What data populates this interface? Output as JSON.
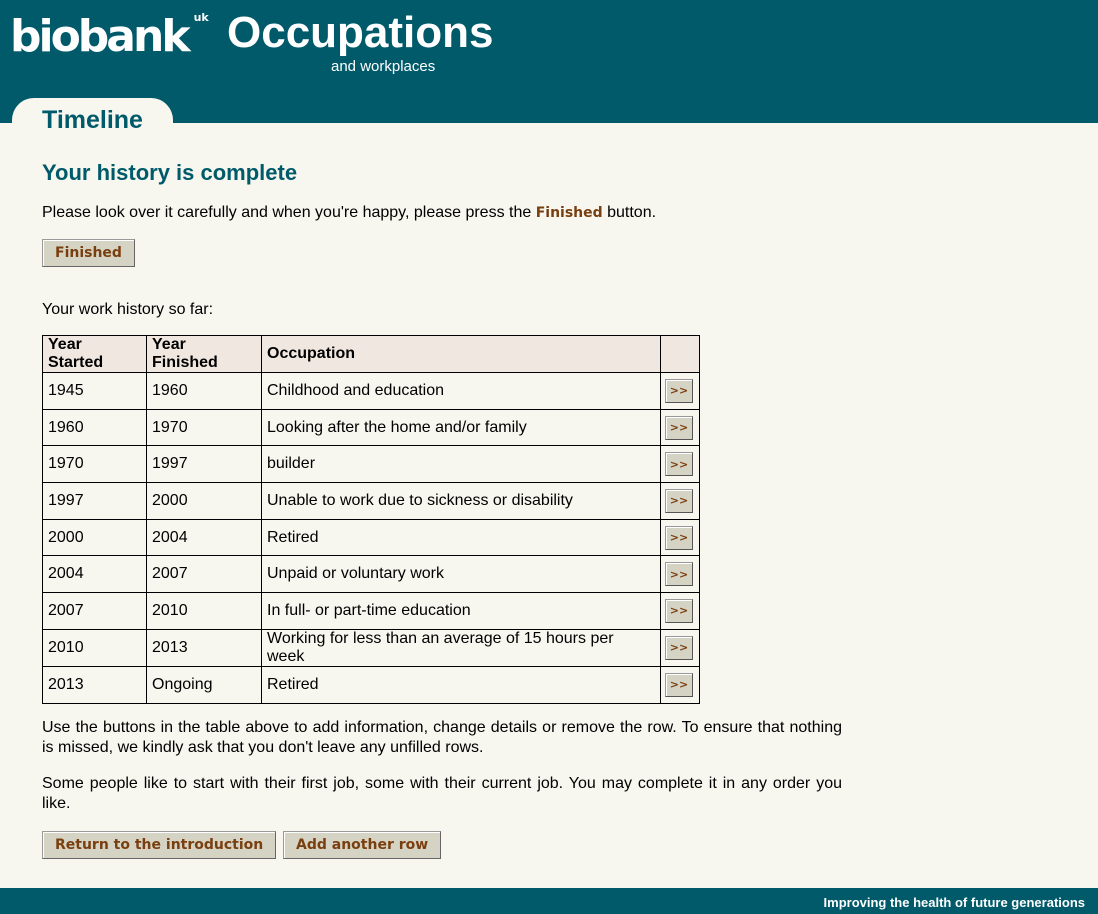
{
  "header": {
    "logo": "biobank",
    "logo_sup": "uk",
    "title": "Occupations",
    "subtitle": "and workplaces",
    "tab": "Timeline"
  },
  "main": {
    "heading": "Your history is complete",
    "intro_before": "Please look over it carefully and when you're happy, please press the ",
    "intro_bold": "Finished",
    "intro_after": " button.",
    "finished_button": "Finished",
    "history_label": "Your work history so far:",
    "columns": [
      "Year Started",
      "Year Finished",
      "Occupation",
      ""
    ],
    "rows": [
      {
        "start": "1945",
        "end": "1960",
        "occupation": "Childhood and education",
        "action": ">>"
      },
      {
        "start": "1960",
        "end": "1970",
        "occupation": "Looking after the home and/or family",
        "action": ">>"
      },
      {
        "start": "1970",
        "end": "1997",
        "occupation": "builder",
        "action": ">>"
      },
      {
        "start": "1997",
        "end": "2000",
        "occupation": "Unable to work due to sickness or disability",
        "action": ">>"
      },
      {
        "start": "2000",
        "end": "2004",
        "occupation": "Retired",
        "action": ">>"
      },
      {
        "start": "2004",
        "end": "2007",
        "occupation": "Unpaid or voluntary work",
        "action": ">>"
      },
      {
        "start": "2007",
        "end": "2010",
        "occupation": "In full- or part-time education",
        "action": ">>"
      },
      {
        "start": "2010",
        "end": "2013",
        "occupation": "Working for less than an average of 15 hours per week",
        "action": ">>"
      },
      {
        "start": "2013",
        "end": "Ongoing",
        "occupation": "Retired",
        "action": ">>"
      }
    ],
    "help1": "Use the buttons in the table above to add information, change details or remove the row. To ensure that nothing is missed, we kindly ask that you don't leave any unfilled rows.",
    "help2": "Some people like to start with their first job, some with their current job. You may complete it in any order you like.",
    "return_button": "Return to the introduction",
    "add_button": "Add another row"
  },
  "footer": {
    "tagline": "Improving the health of future generations"
  },
  "colors": {
    "brand": "#005a6a",
    "background": "#f7f6ef",
    "button_text": "#7a3f0f"
  }
}
